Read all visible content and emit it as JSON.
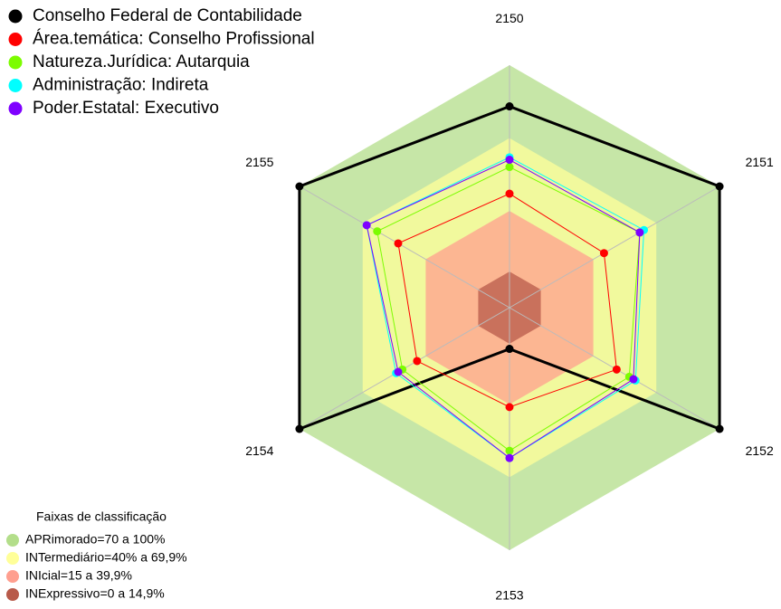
{
  "chart_data": {
    "type": "radar",
    "categories": [
      "2150",
      "2151",
      "2152",
      "2153",
      "2154",
      "2155"
    ],
    "ylim": [
      0,
      100
    ],
    "series": [
      {
        "name": "Conselho Federal de Contabilidade",
        "color": "#000000",
        "values": [
          83,
          100,
          100,
          17,
          100,
          100
        ]
      },
      {
        "name": "Área.temática: Conselho Profissional",
        "color": "#ff0000",
        "values": [
          47,
          45,
          51,
          41,
          44,
          53
        ]
      },
      {
        "name": "Natureza.Jurídica: Autarquia",
        "color": "#7cfc00",
        "values": [
          58,
          62,
          57,
          59,
          51,
          63
        ]
      },
      {
        "name": "Administração: Indireta",
        "color": "#00ffff",
        "values": [
          62,
          64,
          60,
          62,
          54,
          68
        ]
      },
      {
        "name": "Poder.Estatal: Executivo",
        "color": "#7f00ff",
        "values": [
          61,
          62,
          59,
          62,
          53,
          68
        ]
      }
    ],
    "bands_title": "Faixas de classificação",
    "bands": [
      {
        "label": "APRimorado=70 a 100%",
        "max": 100,
        "color": "#b3de8a"
      },
      {
        "label": "INTermediário=40% a 69,9%",
        "max": 69.9,
        "color": "#ffff99"
      },
      {
        "label": "INIcial=15 a 39,9%",
        "max": 39.9,
        "color": "#ff9f8f"
      },
      {
        "label": "INExpressivo=0 a 14,9%",
        "max": 14.9,
        "color": "#b85a4a"
      }
    ]
  }
}
